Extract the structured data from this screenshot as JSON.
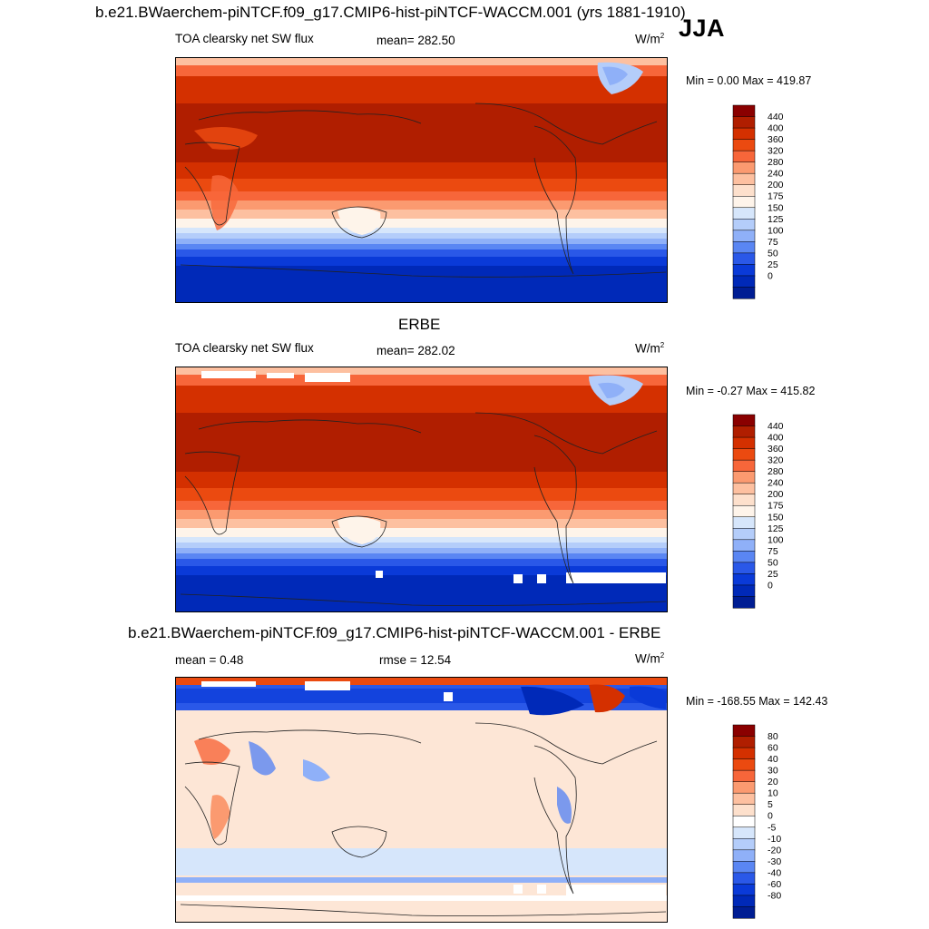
{
  "header": {
    "title": "b.e21.BWaerchem-piNTCF.f09_g17.CMIP6-hist-piNTCF-WACCM.001 (yrs 1881-1910)",
    "season": "JJA"
  },
  "panels": [
    {
      "id": "model",
      "left_label": "TOA clearsky net SW flux",
      "center_label": "mean= 282.50",
      "units": "W/m",
      "units_sup": "2",
      "minmax": "Min =   0.00 Max = 419.87",
      "colorbar": {
        "levels": [
          "440",
          "400",
          "360",
          "320",
          "280",
          "240",
          "200",
          "175",
          "150",
          "125",
          "100",
          "75",
          "50",
          "25",
          "0"
        ],
        "colors": [
          "#8a0000",
          "#b01e00",
          "#d43000",
          "#eb4a10",
          "#f7663a",
          "#fb9a70",
          "#fdc0a0",
          "#fde0cc",
          "#fef4ea",
          "#d6e6fb",
          "#b4cdfa",
          "#8fb0f8",
          "#5a86f3",
          "#2a58e8",
          "#0a3ad8",
          "#0029b8",
          "#001d93"
        ]
      }
    },
    {
      "id": "obs",
      "title": "ERBE",
      "left_label": "TOA clearsky net SW flux",
      "center_label": "mean= 282.02",
      "units": "W/m",
      "units_sup": "2",
      "minmax": "Min =  -0.27 Max = 415.82",
      "colorbar": {
        "levels": [
          "440",
          "400",
          "360",
          "320",
          "280",
          "240",
          "200",
          "175",
          "150",
          "125",
          "100",
          "75",
          "50",
          "25",
          "0"
        ],
        "colors": [
          "#8a0000",
          "#b01e00",
          "#d43000",
          "#eb4a10",
          "#f7663a",
          "#fb9a70",
          "#fdc0a0",
          "#fde0cc",
          "#fef4ea",
          "#d6e6fb",
          "#b4cdfa",
          "#8fb0f8",
          "#5a86f3",
          "#2a58e8",
          "#0a3ad8",
          "#0029b8",
          "#001d93"
        ]
      }
    },
    {
      "id": "diff",
      "title": "b.e21.BWaerchem-piNTCF.f09_g17.CMIP6-hist-piNTCF-WACCM.001 - ERBE",
      "left_label": "mean =   0.48",
      "center_label": "rmse =  12.54",
      "units": "W/m",
      "units_sup": "2",
      "minmax": "Min = -168.55 Max = 142.43",
      "colorbar": {
        "levels": [
          "80",
          "60",
          "40",
          "30",
          "20",
          "10",
          "5",
          "0",
          "-5",
          "-10",
          "-20",
          "-30",
          "-40",
          "-60",
          "-80"
        ],
        "colors": [
          "#8a0000",
          "#b01e00",
          "#d43000",
          "#eb4a10",
          "#f7663a",
          "#fb9a70",
          "#fdc0a0",
          "#fde0cc",
          "#ffffff",
          "#d6e6fb",
          "#b4cdfa",
          "#8fb0f8",
          "#5a86f3",
          "#2a58e8",
          "#0a3ad8",
          "#0029b8",
          "#001d93"
        ]
      }
    }
  ]
}
